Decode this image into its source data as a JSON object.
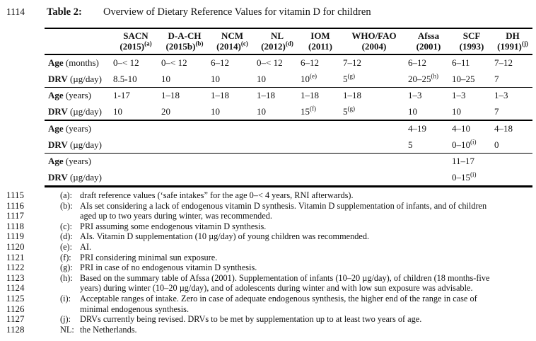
{
  "title": {
    "line_no": "1114",
    "label": "Table 2:",
    "text": "Overview of Dietary Reference Values for vitamin D for children"
  },
  "table": {
    "columns": [
      {
        "name": "SACN",
        "year": "(2015)",
        "sup": "(a)"
      },
      {
        "name": "D-A-CH",
        "year": "(2015b)",
        "sup": "(b)"
      },
      {
        "name": "NCM",
        "year": "(2014)",
        "sup": "(c)"
      },
      {
        "name": "NL",
        "year": "(2012)",
        "sup": "(d)"
      },
      {
        "name": "IOM",
        "year": "(2011)",
        "sup": ""
      },
      {
        "name": "WHO/FAO",
        "year": "(2004)",
        "sup": ""
      },
      {
        "name": "Afssa",
        "year": "(2001)",
        "sup": ""
      },
      {
        "name": "SCF",
        "year": "(1993)",
        "sup": ""
      },
      {
        "name": "DH",
        "year": "(1991)",
        "sup": "(j)"
      }
    ],
    "groups": [
      {
        "age_label_bold": "Age",
        "age_label_rest": " (months)",
        "drv_label_bold": "DRV",
        "drv_label_rest": " (µg/day)",
        "age": [
          "0–< 12",
          "0–< 12",
          "6–12",
          "0–< 12",
          "6–12",
          "7–12",
          "6–12",
          "6–11",
          "7–12"
        ],
        "drv": [
          "8.5-10",
          "10",
          "10",
          "10",
          "10^(e)",
          "5^(g)",
          "20–25^(h)",
          "10–25",
          "7"
        ]
      },
      {
        "age_label_bold": "Age",
        "age_label_rest": " (years)",
        "drv_label_bold": "DRV",
        "drv_label_rest": " (µg/day)",
        "age": [
          "1-17",
          "1–18",
          "1–18",
          "1–18",
          "1–18",
          "1–18",
          "1–3",
          "1–3",
          "1–3"
        ],
        "drv": [
          "10",
          "20",
          "10",
          "10",
          "15^(f)",
          "5^(g)",
          "10",
          "10",
          "7"
        ]
      },
      {
        "age_label_bold": "Age",
        "age_label_rest": " (years)",
        "drv_label_bold": "DRV",
        "drv_label_rest": " (µg/day)",
        "age": [
          "",
          "",
          "",
          "",
          "",
          "",
          "4–19",
          "4–10",
          "4–18"
        ],
        "drv": [
          "",
          "",
          "",
          "",
          "",
          "",
          "5",
          "0–10^(i)",
          "0"
        ]
      },
      {
        "age_label_bold": "Age",
        "age_label_rest": " (years)",
        "drv_label_bold": "DRV",
        "drv_label_rest": " (µg/day)",
        "age": [
          "",
          "",
          "",
          "",
          "",
          "",
          "",
          "11–17",
          ""
        ],
        "drv": [
          "",
          "",
          "",
          "",
          "",
          "",
          "",
          "0–15^(i)",
          ""
        ]
      }
    ]
  },
  "footnotes": [
    {
      "line_no": "1115",
      "label": "(a):",
      "text": "draft reference values (‘safe intakes” for the age 0–< 4 years, RNI afterwards)."
    },
    {
      "line_no": "1116",
      "label": "(b):",
      "text": "AIs set considering a lack of endogenous vitamin D synthesis. Vitamin D supplementation of infants, and of children"
    },
    {
      "line_no": "1117",
      "label": "",
      "text": "aged up to two years during winter, was recommended."
    },
    {
      "line_no": "1118",
      "label": "(c):",
      "text": "PRI assuming some endogenous vitamin D synthesis."
    },
    {
      "line_no": "1119",
      "label": "(d):",
      "text": "AIs. Vitamin D supplementation (10 µg/day) of young children was recommended."
    },
    {
      "line_no": "1120",
      "label": "(e):",
      "text": "AI."
    },
    {
      "line_no": "1121",
      "label": "(f):",
      "text": "PRI considering minimal sun exposure."
    },
    {
      "line_no": "1122",
      "label": "(g):",
      "text": "PRI in case of no endogenous vitamin D synthesis."
    },
    {
      "line_no": "1123",
      "label": "(h):",
      "text": "Based on the summary table of Afssa (2001). Supplementation of infants (10–20 µg/day), of children (18 months-five"
    },
    {
      "line_no": "1124",
      "label": "",
      "text": "years) during winter (10–20 µg/day), and of adolescents during winter and with low sun exposure was advisable."
    },
    {
      "line_no": "1125",
      "label": "(i):",
      "text": "Acceptable ranges of intake. Zero in case of adequate endogenous synthesis, the higher end of the range in case of"
    },
    {
      "line_no": "1126",
      "label": "",
      "text": "minimal endogenous synthesis."
    },
    {
      "line_no": "1127",
      "label": "(j):",
      "text": "DRVs currently being revised. DRVs to be met by supplementation up to at least two years of age."
    },
    {
      "line_no": "1128",
      "label": "NL:",
      "text": "the Netherlands."
    }
  ],
  "colors": {
    "text": "#121212",
    "background": "#ffffff",
    "rule": "#000000"
  }
}
